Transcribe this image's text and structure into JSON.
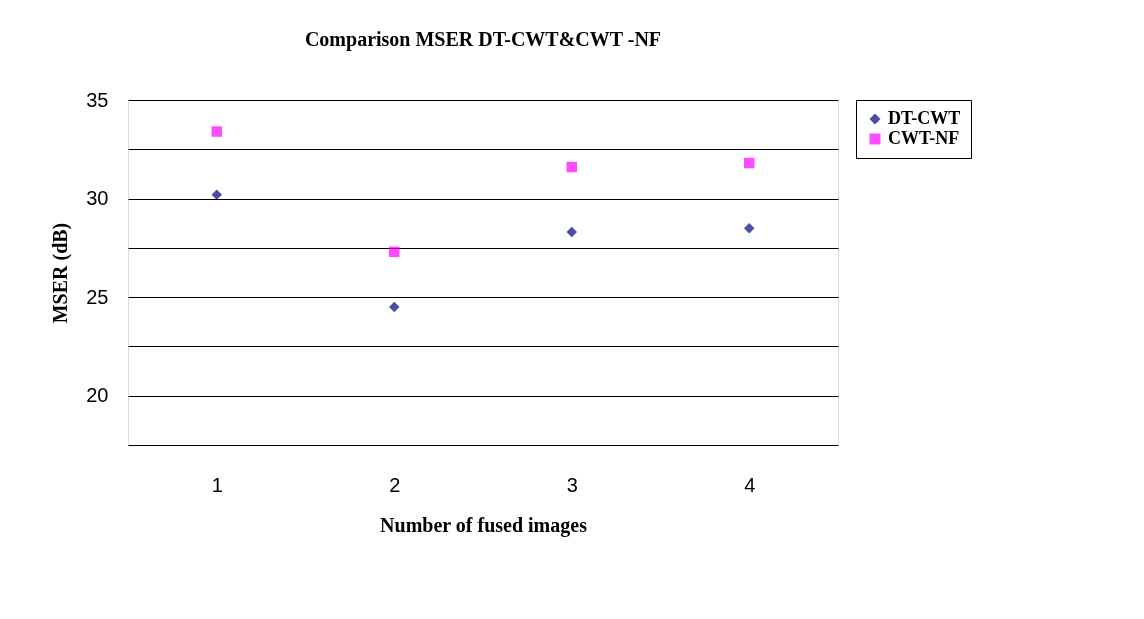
{
  "chart_data": {
    "type": "scatter",
    "title": "Comparison MSER DT-CWT&CWT -NF",
    "xlabel": "Number of fused images",
    "ylabel": "MSER (dB)",
    "categories": [
      "1",
      "2",
      "3",
      "4"
    ],
    "series": [
      {
        "name": "DT-CWT",
        "color": "#000080",
        "marker": "diamond",
        "values": [
          30.2,
          24.5,
          28.3,
          28.5
        ]
      },
      {
        "name": "CWT-NF",
        "color": "#ff00ff",
        "marker": "square",
        "values": [
          33.4,
          27.3,
          31.6,
          31.8
        ]
      }
    ],
    "ylim": [
      17.5,
      35
    ],
    "yticks": [
      {
        "value": 17.5,
        "label": null
      },
      20,
      {
        "value": 22.5,
        "label": null
      },
      25,
      {
        "value": 27.5,
        "label": null
      },
      30,
      {
        "value": 32.5,
        "label": null
      },
      35
    ],
    "grid": "y",
    "legend": "right"
  }
}
